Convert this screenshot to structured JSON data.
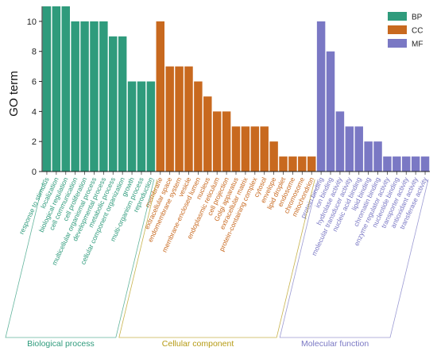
{
  "chart_data": {
    "type": "bar",
    "ylabel": "GO term",
    "xlabel": "",
    "ylim": [
      0,
      11
    ],
    "yticks": [
      0,
      2,
      4,
      6,
      8,
      10
    ],
    "grid": false,
    "legend_position": "top-right",
    "colors": {
      "BP": "#2f9b7c",
      "CC": "#c8691f",
      "MF": "#7a78c4"
    },
    "group_label_colors": {
      "BP": "#2f9b7c",
      "CC": "#b59a12",
      "MF": "#7a78c4"
    },
    "groups": [
      {
        "key": "BP",
        "legend": "BP",
        "label": "Biological process"
      },
      {
        "key": "CC",
        "legend": "CC",
        "label": "Cellular component"
      },
      {
        "key": "MF",
        "legend": "MF",
        "label": "Molecular function"
      }
    ],
    "bars": [
      {
        "label": "response to stimulus",
        "value": 11,
        "group": "BP"
      },
      {
        "label": "localization",
        "value": 11,
        "group": "BP"
      },
      {
        "label": "biological regulation",
        "value": 11,
        "group": "BP"
      },
      {
        "label": "cell communication",
        "value": 10,
        "group": "BP"
      },
      {
        "label": "cell proliferation",
        "value": 10,
        "group": "BP"
      },
      {
        "label": "multicellular organismal process",
        "value": 10,
        "group": "BP"
      },
      {
        "label": "developmental process",
        "value": 10,
        "group": "BP"
      },
      {
        "label": "metabolic process",
        "value": 9,
        "group": "BP"
      },
      {
        "label": "cellular component organization",
        "value": 9,
        "group": "BP"
      },
      {
        "label": "growth",
        "value": 6,
        "group": "BP"
      },
      {
        "label": "multi-organism process",
        "value": 6,
        "group": "BP"
      },
      {
        "label": "reproduction",
        "value": 6,
        "group": "BP"
      },
      {
        "label": "membrane",
        "value": 10,
        "group": "CC"
      },
      {
        "label": "extracellular space",
        "value": 7,
        "group": "CC"
      },
      {
        "label": "endomembrane system",
        "value": 7,
        "group": "CC"
      },
      {
        "label": "vesicle",
        "value": 7,
        "group": "CC"
      },
      {
        "label": "membrane-enclosed lumen",
        "value": 6,
        "group": "CC"
      },
      {
        "label": "nucleus",
        "value": 5,
        "group": "CC"
      },
      {
        "label": "endoplasmic reticulum",
        "value": 4,
        "group": "CC"
      },
      {
        "label": "cell projection",
        "value": 4,
        "group": "CC"
      },
      {
        "label": "Golgi apparatus",
        "value": 3,
        "group": "CC"
      },
      {
        "label": "extracellular matrix",
        "value": 3,
        "group": "CC"
      },
      {
        "label": "protein-containing complex",
        "value": 3,
        "group": "CC"
      },
      {
        "label": "cytosol",
        "value": 3,
        "group": "CC"
      },
      {
        "label": "envelope",
        "value": 2,
        "group": "CC"
      },
      {
        "label": "lipid droplet",
        "value": 1,
        "group": "CC"
      },
      {
        "label": "endosome",
        "value": 1,
        "group": "CC"
      },
      {
        "label": "chromosome",
        "value": 1,
        "group": "CC"
      },
      {
        "label": "mitochondrion",
        "value": 1,
        "group": "CC"
      },
      {
        "label": "protein binding",
        "value": 10,
        "group": "MF"
      },
      {
        "label": "ion binding",
        "value": 8,
        "group": "MF"
      },
      {
        "label": "hydrolase activity",
        "value": 4,
        "group": "MF"
      },
      {
        "label": "molecular transducer activity",
        "value": 3,
        "group": "MF"
      },
      {
        "label": "nucleic acid binding",
        "value": 3,
        "group": "MF"
      },
      {
        "label": "lipid binding",
        "value": 2,
        "group": "MF"
      },
      {
        "label": "chromatin binding",
        "value": 2,
        "group": "MF"
      },
      {
        "label": "enzyme regulator activity",
        "value": 1,
        "group": "MF"
      },
      {
        "label": "nucleotide binding",
        "value": 1,
        "group": "MF"
      },
      {
        "label": "transporter activity",
        "value": 1,
        "group": "MF"
      },
      {
        "label": "antioxidant activity",
        "value": 1,
        "group": "MF"
      },
      {
        "label": "transferase activity",
        "value": 1,
        "group": "MF"
      }
    ]
  }
}
